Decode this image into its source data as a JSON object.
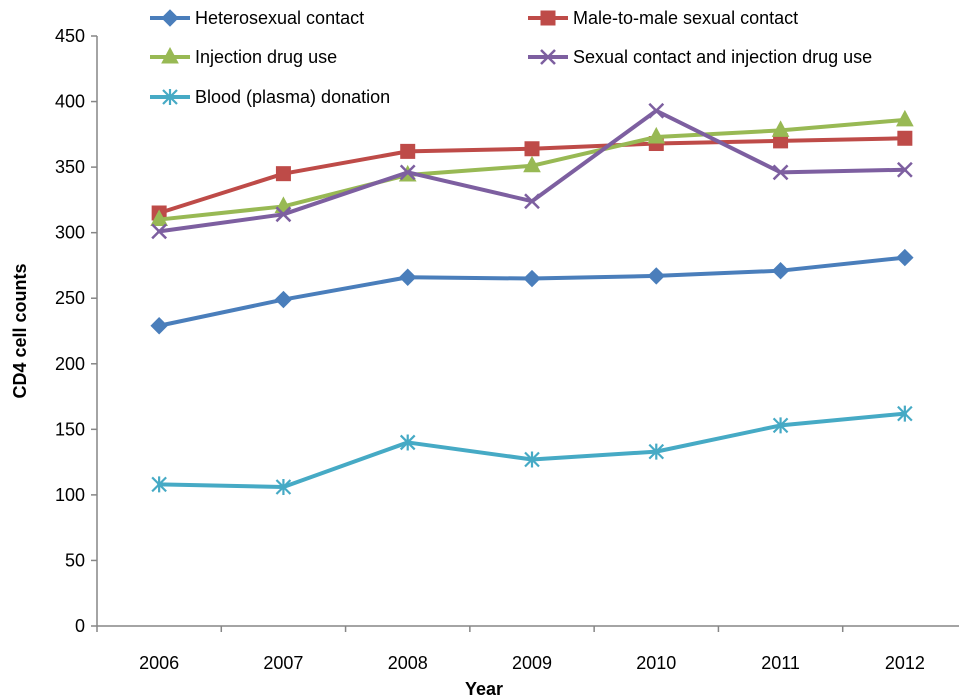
{
  "chart_data": {
    "type": "line",
    "title": "",
    "xlabel": "Year",
    "ylabel": "CD4 cell counts",
    "x": [
      "2006",
      "2007",
      "2008",
      "2009",
      "2010",
      "2011",
      "2012"
    ],
    "ylim": [
      0,
      450
    ],
    "yticks": [
      0,
      50,
      100,
      150,
      200,
      250,
      300,
      350,
      400,
      450
    ],
    "grid": false,
    "legend_position": "top",
    "series": [
      {
        "name": "Heterosexual contact",
        "color": "#4a7ebb",
        "marker": "diamond",
        "values": [
          229,
          249,
          266,
          265,
          267,
          271,
          281
        ]
      },
      {
        "name": "Male-to-male sexual contact",
        "color": "#be4b48",
        "marker": "square",
        "values": [
          315,
          345,
          362,
          364,
          368,
          370,
          372
        ]
      },
      {
        "name": "Injection drug use",
        "color": "#98b954",
        "marker": "triangle",
        "values": [
          310,
          320,
          344,
          351,
          373,
          378,
          386
        ]
      },
      {
        "name": "Sexual contact and injection drug use",
        "color": "#7d5fa0",
        "marker": "x",
        "values": [
          301,
          314,
          346,
          324,
          393,
          346,
          348
        ]
      },
      {
        "name": "Blood (plasma) donation",
        "color": "#46aac5",
        "marker": "star",
        "values": [
          108,
          106,
          140,
          127,
          133,
          153,
          162
        ]
      }
    ]
  }
}
